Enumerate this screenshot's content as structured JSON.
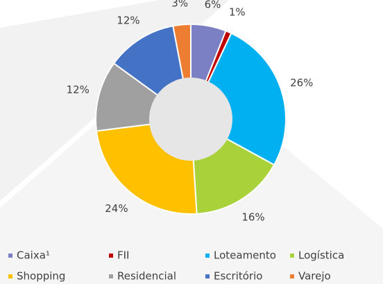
{
  "chart_data": {
    "type": "pie",
    "categories": [
      "Caixa¹",
      "FII",
      "Loteamento",
      "Logística",
      "Shopping",
      "Residencial",
      "Escritório",
      "Varejo"
    ],
    "values": [
      6,
      1,
      26,
      16,
      24,
      12,
      12,
      3
    ],
    "value_labels": [
      "6%",
      "1%",
      "26%",
      "16%",
      "24%",
      "12%",
      "12%",
      "3%"
    ],
    "colors": [
      "#7b7fc4",
      "#c00000",
      "#00b0f0",
      "#a9d13a",
      "#ffc000",
      "#a0a0a0",
      "#4472c4",
      "#ed7d31"
    ],
    "legend": "bottom"
  }
}
